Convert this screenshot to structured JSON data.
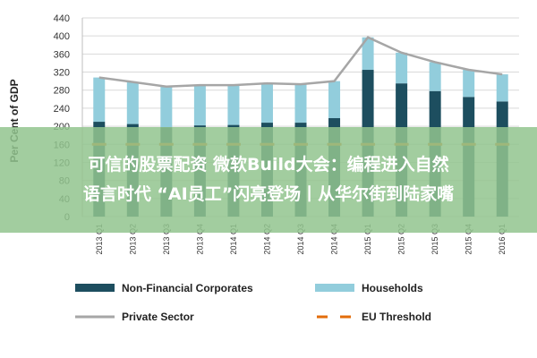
{
  "chart_data": {
    "type": "bar",
    "stacked": true,
    "ylabel": "Per Cent of GDP",
    "ylim": [
      0,
      440
    ],
    "yticks": [
      0,
      40,
      80,
      120,
      160,
      200,
      240,
      280,
      320,
      360,
      400,
      440
    ],
    "grid": true,
    "legend_position": "bottom",
    "categories": [
      "2013 Q1",
      "2013 Q2",
      "2013 Q3",
      "2013 Q4",
      "2014 Q1",
      "2014 Q2",
      "2014 Q3",
      "2014 Q4",
      "2015 Q1",
      "2015 Q2",
      "2015 Q3",
      "2015 Q4",
      "2016 Q1"
    ],
    "series": [
      {
        "name": "Non-Financial Corporates",
        "kind": "bar",
        "color": "#1d4e5f",
        "values": [
          210,
          205,
          198,
          202,
          203,
          208,
          208,
          218,
          325,
          295,
          278,
          265,
          255
        ]
      },
      {
        "name": "Households",
        "kind": "bar",
        "color": "#92cddc",
        "values": [
          98,
          93,
          90,
          89,
          88,
          87,
          85,
          82,
          72,
          68,
          64,
          60,
          60
        ]
      },
      {
        "name": "Private Sector",
        "kind": "line",
        "color": "#a6a6a6",
        "values": [
          308,
          298,
          288,
          291,
          291,
          295,
          293,
          300,
          397,
          363,
          342,
          325,
          315
        ]
      },
      {
        "name": "EU Threshold",
        "kind": "dashed-line",
        "color": "#e36c0a",
        "values": [
          160,
          160,
          160,
          160,
          160,
          160,
          160,
          160,
          160,
          160,
          160,
          160,
          160
        ]
      }
    ]
  },
  "overlay": {
    "line1": "可信的股票配资 微软Build大会：编程进入自然",
    "line2": "语言时代 “AI员工”闪亮登场丨从华尔街到陆家嘴"
  }
}
